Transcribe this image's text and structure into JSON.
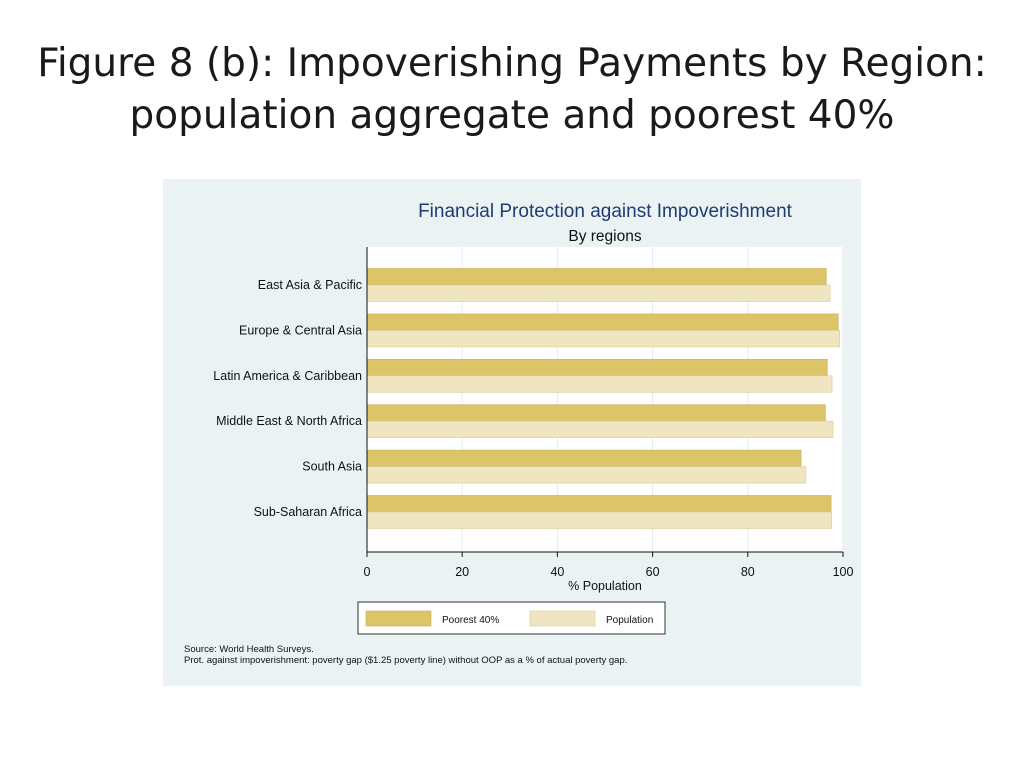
{
  "slide": {
    "title_line1": "Figure 8 (b): Impoverishing Payments by Region:",
    "title_line2": "population aggregate and poorest 40%"
  },
  "colors": {
    "poorest40": "#dcc468",
    "population": "#efe5c0",
    "panel_bg": "#eaf2f3",
    "plot_bg": "#ffffff",
    "title": "#1f3c73"
  },
  "chart_data": {
    "type": "bar",
    "orientation": "horizontal",
    "title": "Financial Protection against Impoverishment",
    "subtitle": "By regions",
    "xlabel": "% Population",
    "ylabel": "",
    "xlim": [
      0,
      100
    ],
    "xticks": [
      0,
      20,
      40,
      60,
      80,
      100
    ],
    "grid": true,
    "legend_position": "bottom",
    "categories": [
      "East Asia & Pacific",
      "Europe & Central Asia",
      "Latin America & Caribbean",
      "Middle East & North Africa",
      "South Asia",
      "Sub-Saharan Africa"
    ],
    "series": [
      {
        "name": "Poorest 40%",
        "values": [
          96.5,
          99.0,
          96.7,
          96.3,
          91.2,
          97.5
        ]
      },
      {
        "name": "Population",
        "values": [
          97.3,
          99.3,
          97.7,
          97.9,
          92.2,
          97.6
        ]
      }
    ],
    "notes": [
      "Source: World Health Surveys.",
      "Prot. against impoverishment: poverty gap ($1.25 poverty line) without OOP as a % of actual poverty gap."
    ]
  }
}
